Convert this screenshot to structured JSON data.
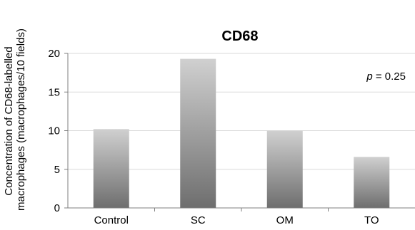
{
  "chart_data": {
    "type": "bar",
    "title": "CD68",
    "xlabel": "",
    "ylabel": [
      "Concentration of CD68-labelled",
      "macrophages (macrophages/10 fields)"
    ],
    "categories": [
      "Control",
      "SC",
      "OM",
      "TO"
    ],
    "values": [
      10.2,
      19.3,
      10.0,
      6.6
    ],
    "ylim": [
      0,
      20
    ],
    "yticks": [
      0,
      5,
      10,
      15,
      20
    ],
    "grid": true,
    "legend": "none",
    "annotation": {
      "italic": "p",
      "text": " = 0.25"
    },
    "colors": {
      "bar_top": "#d0d0d0",
      "bar_bottom": "#6e6e6e",
      "grid": "#d9d9d9",
      "axis": "#7f7f7f"
    }
  }
}
